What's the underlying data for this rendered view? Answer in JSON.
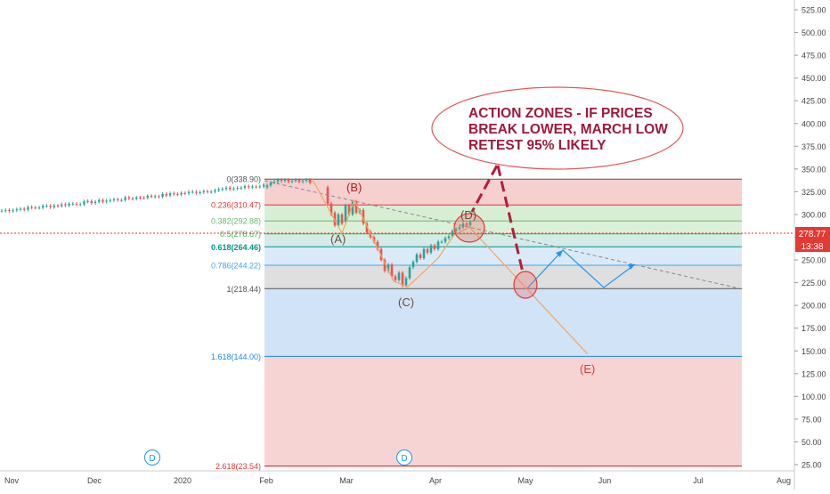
{
  "chart_data": {
    "type": "candlestick",
    "x_tick_labels": [
      "Nov",
      "Dec",
      "2020",
      "Feb",
      "Mar",
      "Apr",
      "May",
      "Jun",
      "Jul",
      "Aug"
    ],
    "y_tick_labels": [
      "525.00",
      "500.00",
      "475.00",
      "450.00",
      "425.00",
      "400.00",
      "375.00",
      "350.00",
      "325.00",
      "300.00",
      "275.00",
      "250.00",
      "225.00",
      "200.00",
      "175.00",
      "150.00",
      "125.00",
      "100.00",
      "75.00",
      "50.00",
      "25.00"
    ],
    "ylim": [
      20,
      535
    ],
    "price_label": "278.77",
    "countdown_label": "13:38",
    "last_price": 278.77,
    "fib_levels": [
      {
        "ratio": 0,
        "label": "0(338.90)",
        "value": 338.9,
        "color": "#555555"
      },
      {
        "ratio": 0.236,
        "label": "0.236(310.47)",
        "value": 310.47,
        "color": "#e53935"
      },
      {
        "ratio": 0.382,
        "label": "0.382(292.88)",
        "value": 292.88,
        "color": "#66bb6a"
      },
      {
        "ratio": 0.5,
        "label": "0.5(278.67)",
        "value": 278.67,
        "color": "#4caf50"
      },
      {
        "ratio": 0.618,
        "label": "0.618(264.46)",
        "value": 264.46,
        "color": "#009688"
      },
      {
        "ratio": 0.786,
        "label": "0.786(244.22)",
        "value": 244.22,
        "color": "#42a5f5"
      },
      {
        "ratio": 1,
        "label": "1(218.44)",
        "value": 218.44,
        "color": "#555555"
      },
      {
        "ratio": 1.618,
        "label": "1.618(144.00)",
        "value": 144.0,
        "color": "#1e88e5"
      },
      {
        "ratio": 2.618,
        "label": "2.618(23.54)",
        "value": 23.54,
        "color": "#e53935"
      }
    ],
    "wave_labels": [
      "(A)",
      "(B)",
      "(C)",
      "(D)",
      "(E)"
    ],
    "event_markers": [
      "D",
      "D"
    ],
    "callout_lines": [
      "ACTION ZONES - IF PRICES",
      "BREAK LOWER, MARCH LOW",
      "RETEST 95% LIKELY"
    ],
    "colors": {
      "up": "#26a69a",
      "down": "#ef5350",
      "callout": "#9e1a3a",
      "projection": "#2196f3",
      "wave_line": "#f4a460"
    }
  }
}
